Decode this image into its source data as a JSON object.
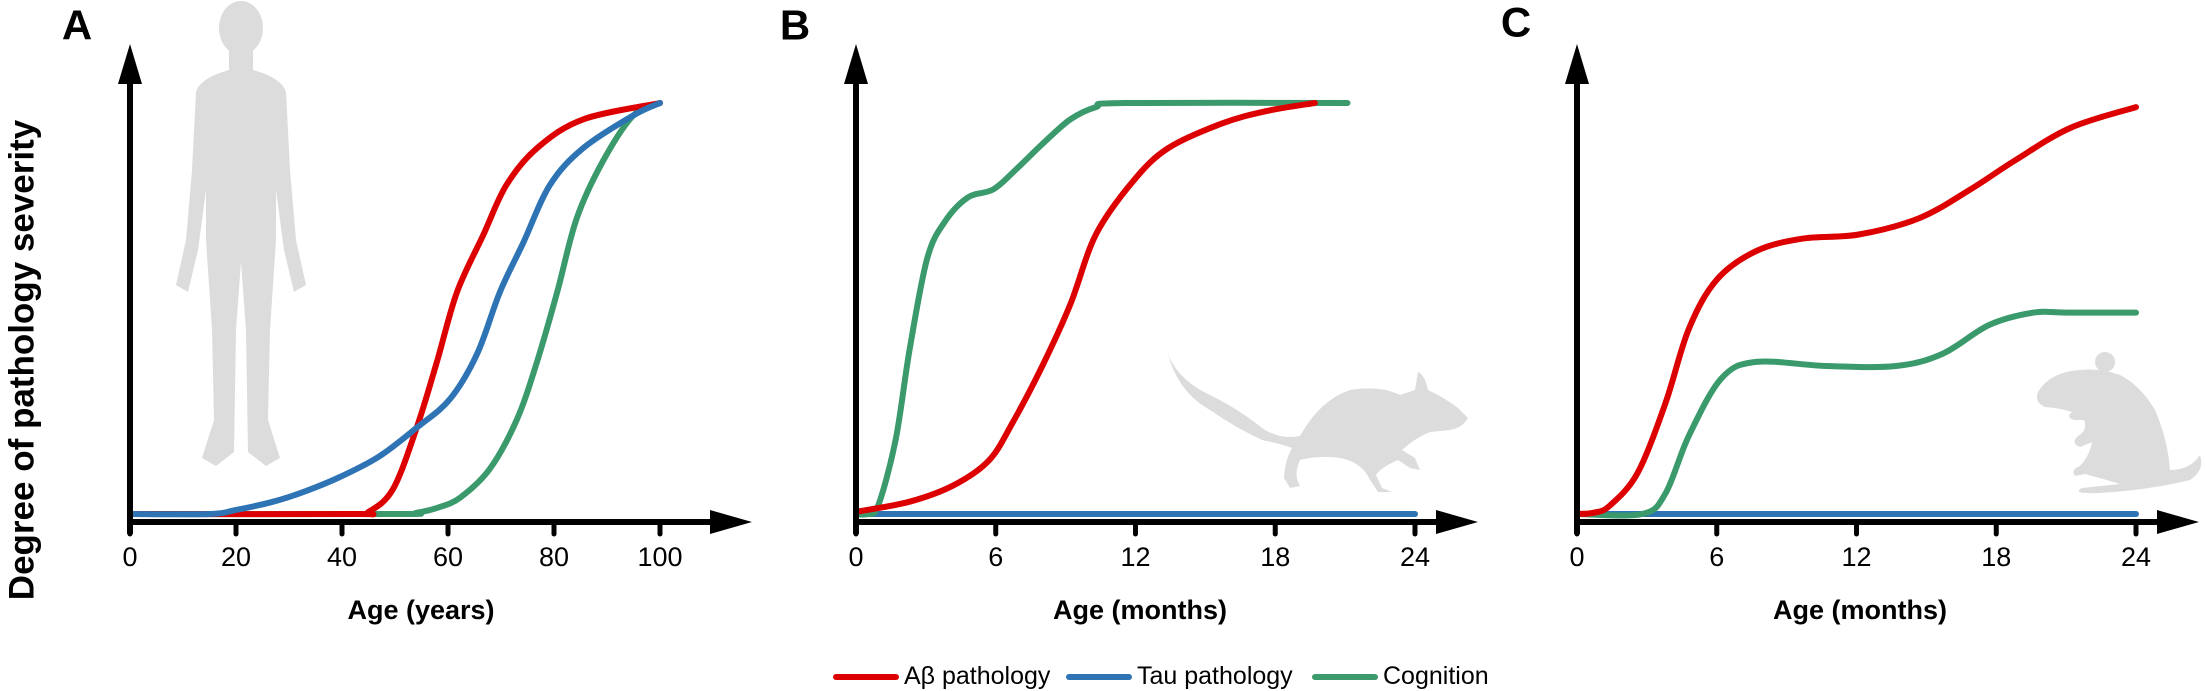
{
  "ylabel": "Degree of pathology severity",
  "legend": [
    {
      "label": "Aβ pathology",
      "color": "#dd0000"
    },
    {
      "label": "Tau pathology",
      "color": "#2e74b5"
    },
    {
      "label": "Cognition",
      "color": "#3a9a6c"
    }
  ],
  "silhouette_color": "#dcdcdc",
  "chart_data": [
    {
      "panel": "A",
      "type": "line",
      "xlabel": "Age (years)",
      "ylabel": "Degree of pathology severity",
      "xlim": [
        0,
        100
      ],
      "ylim": [
        0,
        1
      ],
      "xticks": [
        0,
        20,
        40,
        60,
        80,
        100
      ],
      "yticks": [],
      "grid": false,
      "illustration": "human-silhouette",
      "series": [
        {
          "name": "Aβ pathology",
          "x": [
            0,
            42,
            45,
            49.6,
            54.1,
            57.9,
            61.7,
            66.7,
            71,
            76.8,
            85.5,
            100
          ],
          "y": [
            0,
            0,
            0.005,
            0.06,
            0.21,
            0.37,
            0.54,
            0.68,
            0.8,
            0.89,
            0.96,
            1.0
          ]
        },
        {
          "name": "Tau pathology",
          "x": [
            0,
            15,
            20,
            27,
            33,
            39.6,
            47,
            54.1,
            60.4,
            65.5,
            69.8,
            74.2,
            79.2,
            85.5,
            95,
            100
          ],
          "y": [
            0,
            0,
            0.01,
            0.03,
            0.055,
            0.09,
            0.14,
            0.21,
            0.28,
            0.39,
            0.54,
            0.66,
            0.8,
            0.89,
            0.97,
            1.0
          ]
        },
        {
          "name": "Cognition",
          "x": [
            0,
            50,
            54,
            58,
            62.3,
            67.9,
            73,
            76.8,
            80.6,
            84.3,
            89.3,
            95,
            100
          ],
          "y": [
            0,
            0,
            0.003,
            0.015,
            0.04,
            0.11,
            0.23,
            0.37,
            0.54,
            0.72,
            0.86,
            0.97,
            1.0
          ]
        }
      ]
    },
    {
      "panel": "B",
      "type": "line",
      "xlabel": "Age (months)",
      "ylabel": "Degree of pathology severity",
      "xlim": [
        0,
        24
      ],
      "ylim": [
        0,
        1
      ],
      "xticks": [
        0,
        6,
        12,
        18,
        24
      ],
      "yticks": [],
      "grid": false,
      "illustration": "rat-silhouette",
      "series": [
        {
          "name": "Aβ pathology",
          "x": [
            0,
            2.3,
            4.2,
            5.7,
            6.7,
            8.0,
            9.2,
            10.3,
            11.9,
            13.4,
            15.7,
            17.6,
            19.7
          ],
          "y": [
            0.005,
            0.03,
            0.07,
            0.13,
            0.22,
            0.36,
            0.51,
            0.68,
            0.81,
            0.89,
            0.95,
            0.98,
            1.0
          ]
        },
        {
          "name": "Tau pathology",
          "x": [
            0,
            24
          ],
          "y": [
            0,
            0
          ]
        },
        {
          "name": "Cognition",
          "x": [
            0,
            0.5,
            0.95,
            1.7,
            2.3,
            3.05,
            3.8,
            4.8,
            5.9,
            6.9,
            8.0,
            9.2,
            10.3,
            11.5,
            21.1
          ],
          "y": [
            0,
            0,
            0.02,
            0.18,
            0.4,
            0.62,
            0.71,
            0.77,
            0.79,
            0.84,
            0.9,
            0.96,
            0.99,
            1.0,
            1.0
          ]
        }
      ]
    },
    {
      "panel": "C",
      "type": "line",
      "xlabel": "Age (months)",
      "ylabel": "Degree of pathology severity",
      "xlim": [
        0,
        24
      ],
      "ylim": [
        0,
        1
      ],
      "xticks": [
        0,
        6,
        12,
        18,
        24
      ],
      "yticks": [],
      "grid": false,
      "illustration": "mouse-silhouette",
      "series": [
        {
          "name": "Aβ pathology",
          "x": [
            0,
            0.7,
            1.4,
            2.6,
            3.8,
            4.8,
            6.0,
            7.7,
            9.7,
            12.1,
            14.7,
            16.9,
            18.8,
            21.2,
            24
          ],
          "y": [
            0,
            0.003,
            0.02,
            0.1,
            0.27,
            0.45,
            0.57,
            0.64,
            0.67,
            0.68,
            0.72,
            0.79,
            0.86,
            0.94,
            0.99
          ]
        },
        {
          "name": "Tau pathology",
          "x": [
            0,
            24
          ],
          "y": [
            0,
            0
          ]
        },
        {
          "name": "Cognition",
          "x": [
            0,
            2.8,
            3.8,
            4.8,
            6.2,
            7.7,
            10.7,
            13.7,
            15.7,
            17.7,
            19.6,
            21,
            24
          ],
          "y": [
            0,
            0,
            0.05,
            0.19,
            0.33,
            0.37,
            0.36,
            0.36,
            0.39,
            0.46,
            0.49,
            0.49,
            0.49
          ]
        }
      ]
    }
  ]
}
